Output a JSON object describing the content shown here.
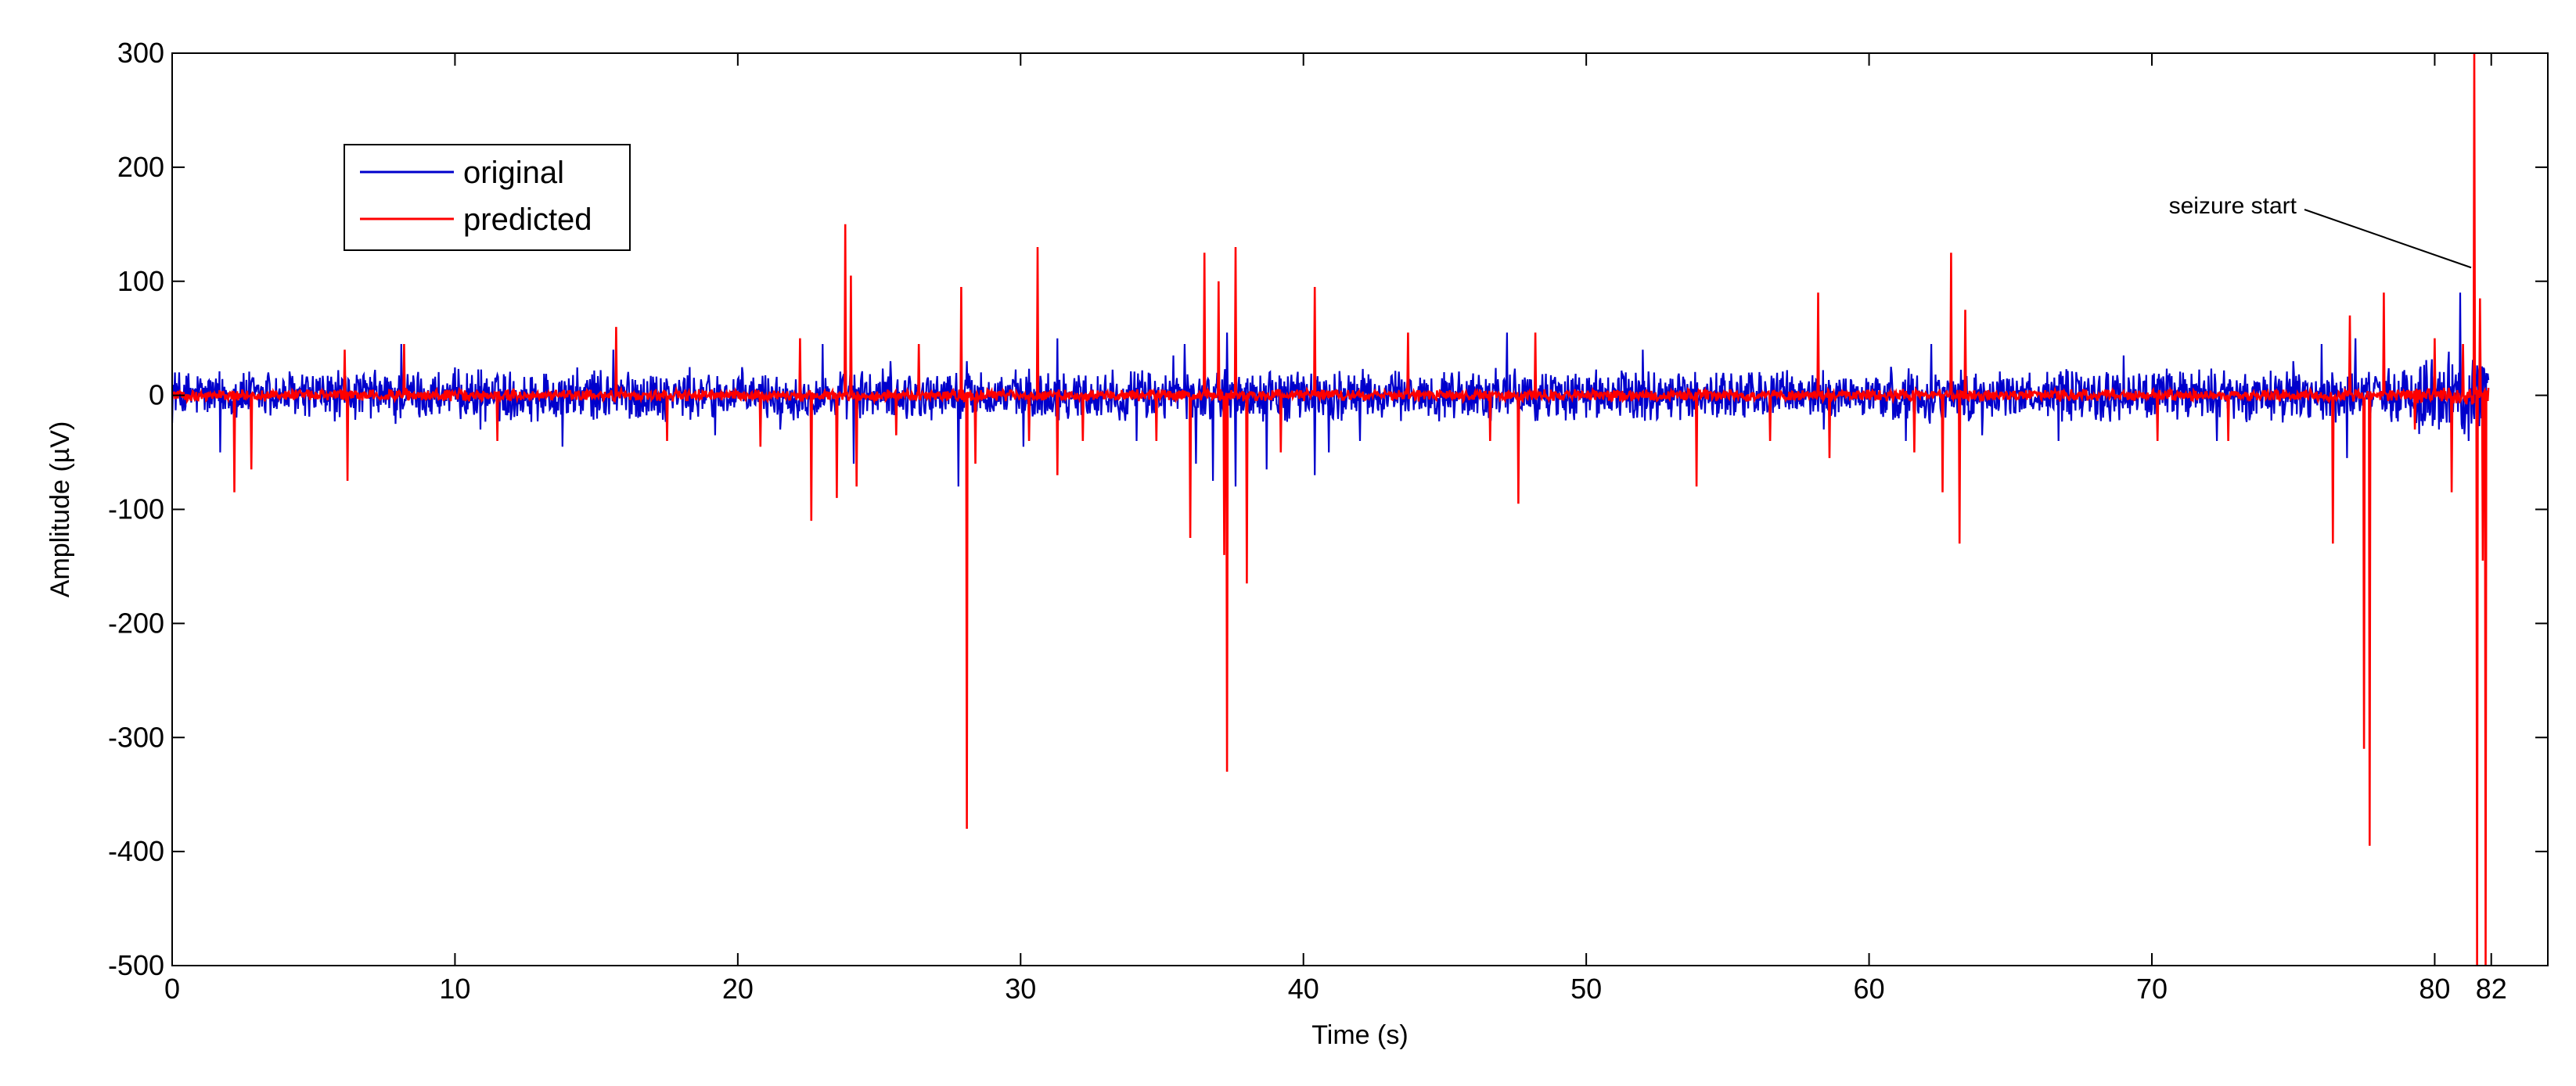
{
  "chart_data": {
    "type": "line",
    "xlabel": "Time (s)",
    "ylabel": "Amplitude (µV)",
    "xlim": [
      0,
      84
    ],
    "ylim": [
      -500,
      300
    ],
    "xticks": [
      0,
      10,
      20,
      30,
      40,
      50,
      60,
      70,
      80,
      82
    ],
    "xtick_labels": [
      "0",
      "10",
      "20",
      "30",
      "40",
      "50",
      "60",
      "70",
      "80",
      "82"
    ],
    "yticks": [
      300,
      200,
      100,
      0,
      -100,
      -200,
      -300,
      -400,
      -500
    ],
    "ytick_labels": [
      "300",
      "200",
      "100",
      "0",
      "-100",
      "-200",
      "-300",
      "-400",
      "-500"
    ],
    "grid": false,
    "legend": "top-left",
    "series": [
      {
        "name": "original",
        "color": "#0000cc",
        "noise_amplitude": 18,
        "spikes": [
          [
            0.1,
            20
          ],
          [
            1.7,
            -50
          ],
          [
            3.4,
            20
          ],
          [
            7.9,
            -25
          ],
          [
            8.1,
            45
          ],
          [
            10.9,
            -30
          ],
          [
            13.8,
            -45
          ],
          [
            15.6,
            40
          ],
          [
            19.2,
            -35
          ],
          [
            21.5,
            -30
          ],
          [
            23.0,
            45
          ],
          [
            23.5,
            -55
          ],
          [
            24.1,
            -60
          ],
          [
            25.4,
            30
          ],
          [
            27.8,
            -80
          ],
          [
            28.1,
            30
          ],
          [
            30.1,
            -45
          ],
          [
            31.3,
            50
          ],
          [
            34.1,
            -40
          ],
          [
            35.4,
            35
          ],
          [
            35.8,
            45
          ],
          [
            36.2,
            -60
          ],
          [
            36.8,
            -75
          ],
          [
            37.3,
            55
          ],
          [
            37.6,
            -80
          ],
          [
            38.7,
            -65
          ],
          [
            40.4,
            -70
          ],
          [
            40.9,
            -50
          ],
          [
            42.0,
            -40
          ],
          [
            47.2,
            55
          ],
          [
            47.6,
            -35
          ],
          [
            52.0,
            40
          ],
          [
            58.4,
            -30
          ],
          [
            61.3,
            -40
          ],
          [
            62.2,
            45
          ],
          [
            64.0,
            -35
          ],
          [
            66.7,
            -40
          ],
          [
            69.0,
            35
          ],
          [
            72.3,
            -40
          ],
          [
            75.0,
            30
          ],
          [
            76.0,
            45
          ],
          [
            76.9,
            -55
          ],
          [
            77.2,
            50
          ],
          [
            80.6,
            -50
          ],
          [
            80.9,
            90
          ],
          [
            81.2,
            -40
          ]
        ]
      },
      {
        "name": "predicted",
        "color": "#ff0000",
        "noise_amplitude": 4,
        "spikes": [
          [
            2.2,
            -85
          ],
          [
            2.8,
            -65
          ],
          [
            6.1,
            40
          ],
          [
            6.2,
            -75
          ],
          [
            8.2,
            45
          ],
          [
            11.5,
            -40
          ],
          [
            15.7,
            60
          ],
          [
            17.5,
            -40
          ],
          [
            20.8,
            -45
          ],
          [
            22.2,
            50
          ],
          [
            22.6,
            -110
          ],
          [
            23.5,
            -90
          ],
          [
            23.8,
            150
          ],
          [
            24.0,
            105
          ],
          [
            24.2,
            -80
          ],
          [
            25.6,
            -35
          ],
          [
            26.4,
            45
          ],
          [
            27.9,
            95
          ],
          [
            28.1,
            -380
          ],
          [
            28.4,
            -60
          ],
          [
            30.3,
            -40
          ],
          [
            30.6,
            130
          ],
          [
            31.3,
            -70
          ],
          [
            32.2,
            -40
          ],
          [
            34.8,
            -40
          ],
          [
            36.0,
            -125
          ],
          [
            36.5,
            125
          ],
          [
            37.0,
            100
          ],
          [
            37.2,
            -140
          ],
          [
            37.3,
            -330
          ],
          [
            37.6,
            130
          ],
          [
            38.0,
            -165
          ],
          [
            39.2,
            -50
          ],
          [
            40.4,
            95
          ],
          [
            43.7,
            55
          ],
          [
            46.6,
            -40
          ],
          [
            47.6,
            -95
          ],
          [
            48.2,
            55
          ],
          [
            53.9,
            -80
          ],
          [
            56.5,
            -40
          ],
          [
            58.2,
            90
          ],
          [
            58.6,
            -55
          ],
          [
            61.6,
            -50
          ],
          [
            62.6,
            -85
          ],
          [
            62.9,
            125
          ],
          [
            63.2,
            -130
          ],
          [
            63.4,
            75
          ],
          [
            70.2,
            -40
          ],
          [
            72.7,
            -40
          ],
          [
            76.4,
            -130
          ],
          [
            77.0,
            70
          ],
          [
            77.5,
            -310
          ],
          [
            77.7,
            -395
          ],
          [
            78.2,
            90
          ],
          [
            79.3,
            -30
          ],
          [
            80.0,
            50
          ],
          [
            80.6,
            -85
          ],
          [
            81.0,
            45
          ],
          [
            81.4,
            300
          ],
          [
            81.5,
            -500
          ],
          [
            81.6,
            85
          ],
          [
            81.7,
            -145
          ],
          [
            81.8,
            -500
          ]
        ]
      }
    ],
    "annotations": [
      {
        "text": "seizure start",
        "x": 81.4,
        "y": 112
      }
    ]
  }
}
